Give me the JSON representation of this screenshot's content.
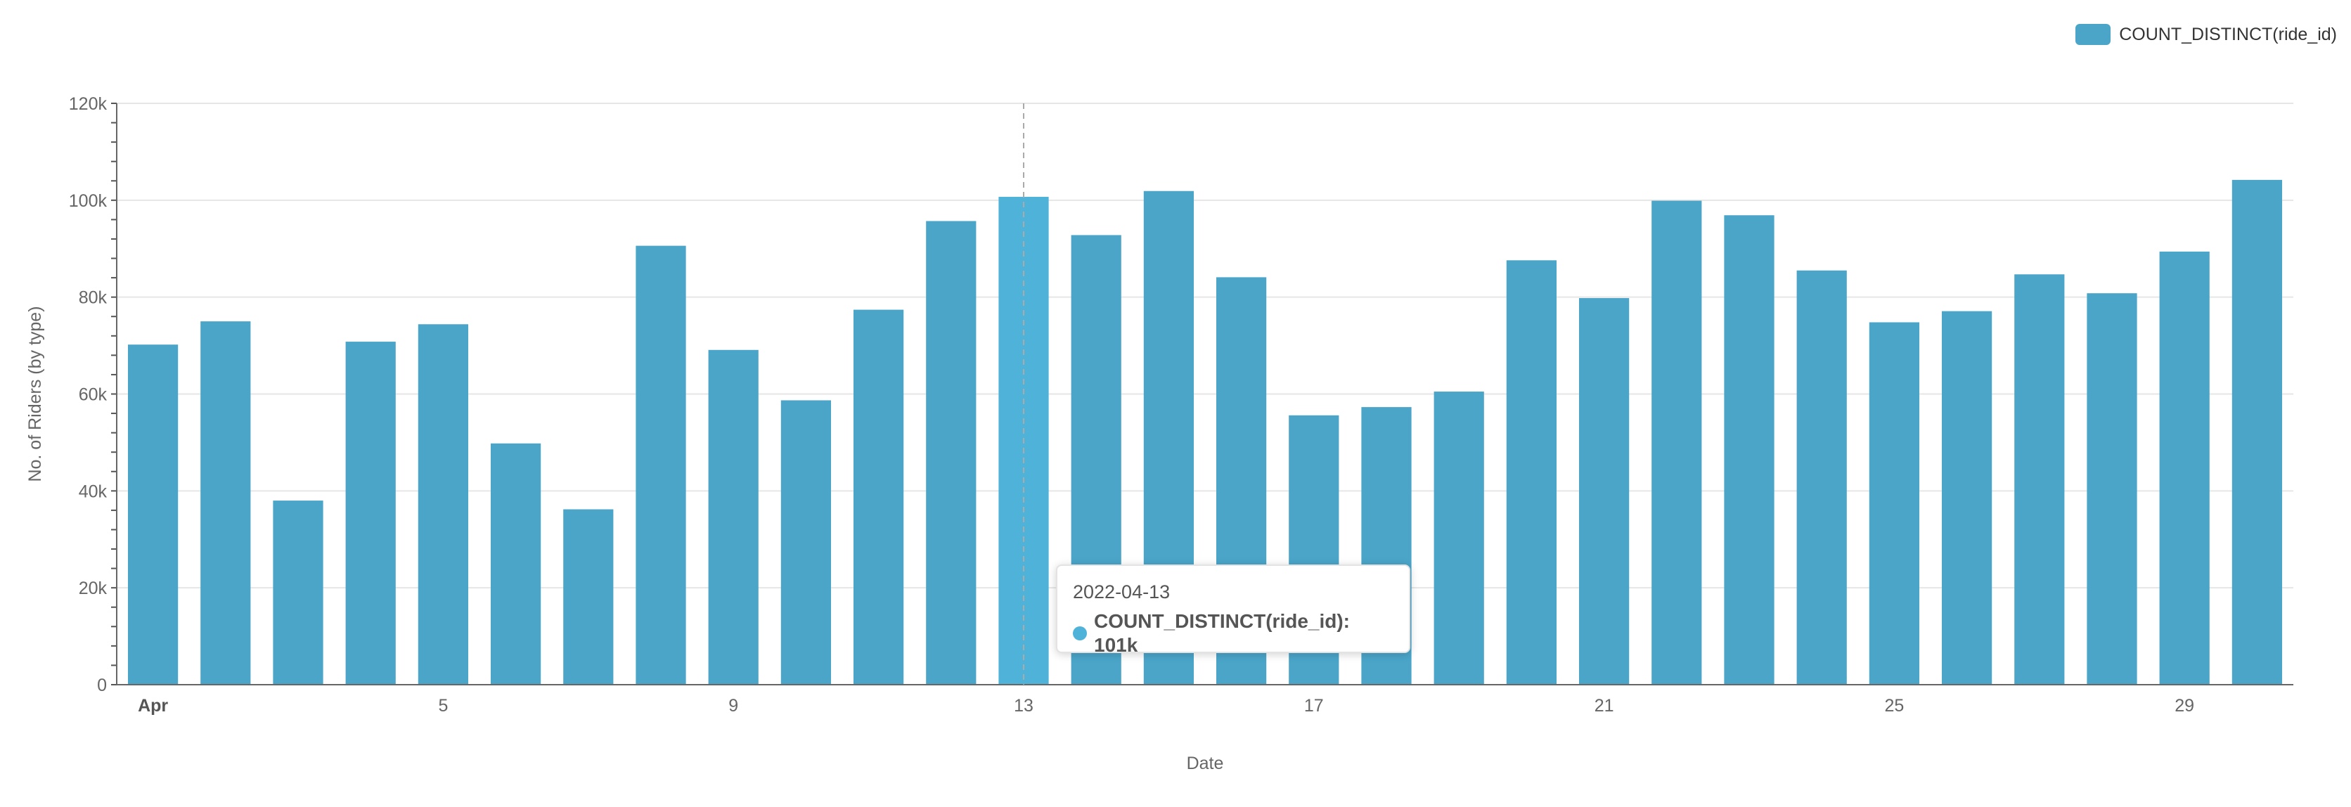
{
  "chart_data": {
    "type": "bar",
    "x": [
      "2022-04-01",
      "2022-04-02",
      "2022-04-03",
      "2022-04-04",
      "2022-04-05",
      "2022-04-06",
      "2022-04-07",
      "2022-04-08",
      "2022-04-09",
      "2022-04-10",
      "2022-04-11",
      "2022-04-12",
      "2022-04-13",
      "2022-04-14",
      "2022-04-15",
      "2022-04-16",
      "2022-04-17",
      "2022-04-18",
      "2022-04-19",
      "2022-04-20",
      "2022-04-21",
      "2022-04-22",
      "2022-04-23",
      "2022-04-24",
      "2022-04-25",
      "2022-04-26",
      "2022-04-27",
      "2022-04-28",
      "2022-04-29",
      "2022-04-30"
    ],
    "series": [
      {
        "name": "COUNT_DISTINCT(ride_id)",
        "values": [
          70200,
          75000,
          38000,
          70800,
          74400,
          49800,
          36200,
          90600,
          69100,
          58700,
          77400,
          95700,
          100700,
          92800,
          101900,
          84100,
          55600,
          57300,
          60500,
          87600,
          79800,
          99900,
          96900,
          85500,
          74800,
          77100,
          84700,
          80800,
          89400,
          104200
        ]
      }
    ],
    "xticks": [
      {
        "date": "2022-04-01",
        "label": "Apr",
        "bold": true
      },
      {
        "date": "2022-04-05",
        "label": "5"
      },
      {
        "date": "2022-04-09",
        "label": "9"
      },
      {
        "date": "2022-04-13",
        "label": "13"
      },
      {
        "date": "2022-04-17",
        "label": "17"
      },
      {
        "date": "2022-04-21",
        "label": "21"
      },
      {
        "date": "2022-04-25",
        "label": "25"
      },
      {
        "date": "2022-04-29",
        "label": "29"
      }
    ],
    "yticks": [
      {
        "value": 0,
        "label": "0"
      },
      {
        "value": 20000,
        "label": "20k"
      },
      {
        "value": 40000,
        "label": "40k"
      },
      {
        "value": 60000,
        "label": "60k"
      },
      {
        "value": 80000,
        "label": "80k"
      },
      {
        "value": 100000,
        "label": "100k"
      },
      {
        "value": 120000,
        "label": "120k"
      }
    ],
    "xlabel": "Date",
    "ylabel": "No. of Riders (by type)",
    "ylim": [
      0,
      120000
    ],
    "grid": true,
    "legend_position": "top-right",
    "highlighted": "2022-04-13",
    "colors": {
      "bar": "#4aa5c9",
      "bar_highlight": "#4fb3d9",
      "grid": "#e6e6e6",
      "axis_text": "#666666"
    },
    "tooltip": {
      "date": "2022-04-13",
      "series": "COUNT_DISTINCT(ride_id)",
      "value": "101k",
      "text": "COUNT_DISTINCT(ride_id): 101k"
    }
  }
}
